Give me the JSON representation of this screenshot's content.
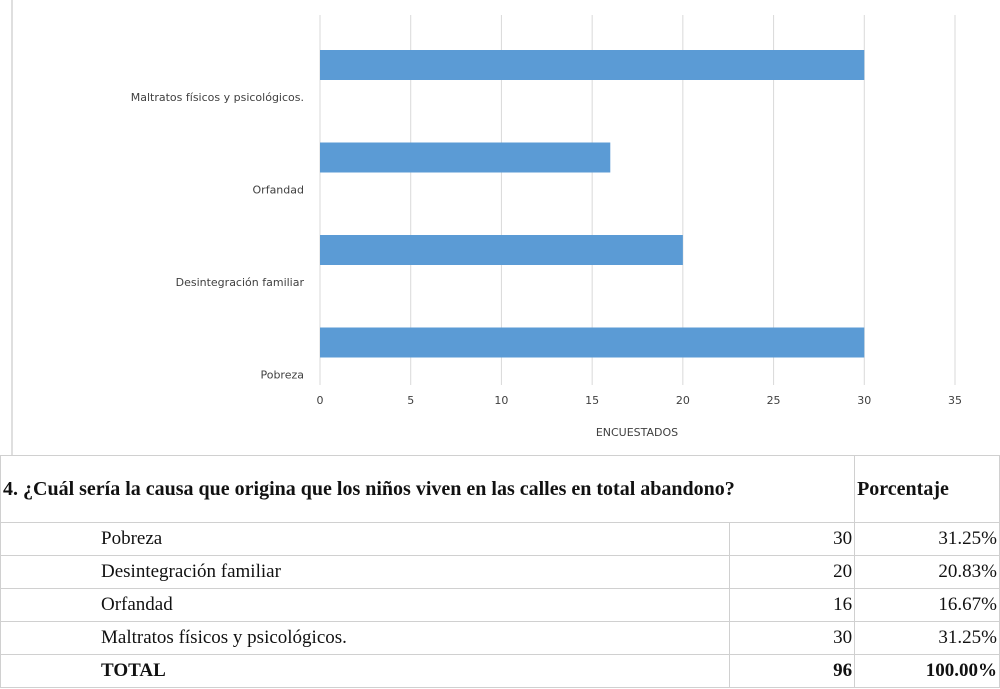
{
  "chart_data": {
    "type": "bar",
    "orientation": "horizontal",
    "categories": [
      "Pobreza",
      "Desintegración familiar",
      "Orfandad",
      "Maltratos físicos y psicológicos."
    ],
    "values": [
      30,
      20,
      16,
      30
    ],
    "color": "#5b9bd5",
    "xlabel": "ENCUESTADOS",
    "xlim": [
      0,
      35
    ],
    "xticks": [
      0,
      5,
      10,
      15,
      20,
      25,
      30,
      35
    ],
    "grid": true
  },
  "table": {
    "header": [
      "4. ¿Cuál sería la causa que origina que los niños viven en las calles en total abandono?",
      "Porcentaje"
    ],
    "rows": [
      [
        "Pobreza",
        30,
        "31.25%"
      ],
      [
        "Desintegración familiar",
        20,
        "20.83%"
      ],
      [
        "Orfandad",
        16,
        "16.67%"
      ],
      [
        "Maltratos físicos y psicológicos.",
        30,
        "31.25%"
      ],
      [
        "TOTAL",
        96,
        "100.00%"
      ]
    ]
  }
}
